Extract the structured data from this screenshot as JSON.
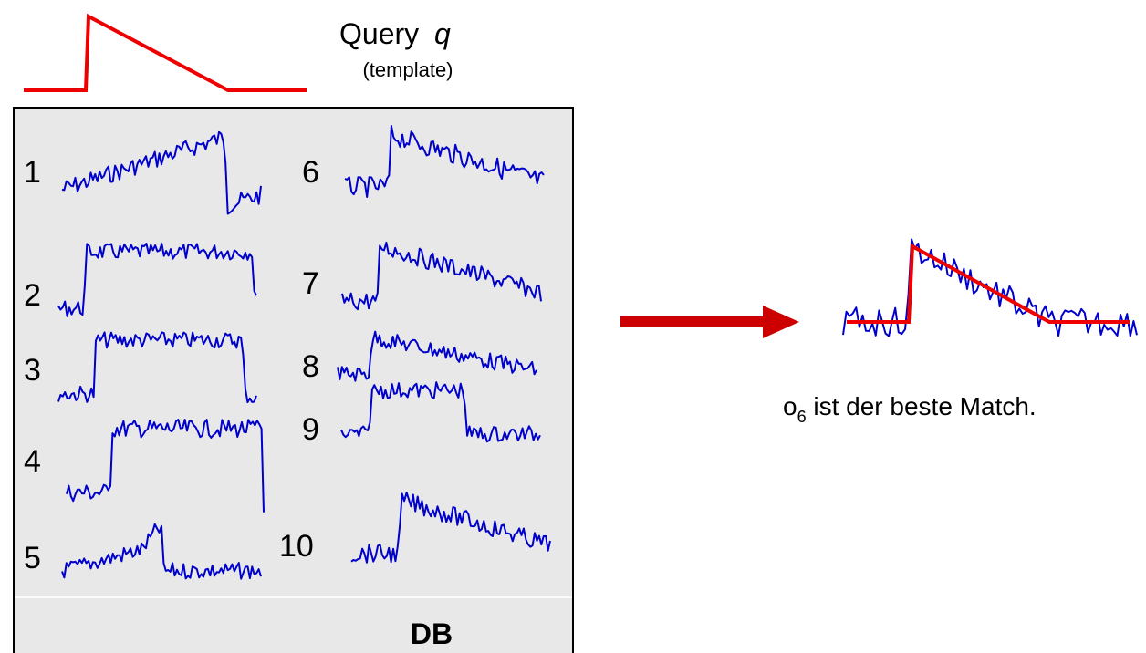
{
  "query": {
    "title": "Query",
    "variable": "q",
    "subtitle": "(template)",
    "color": "#ee0000"
  },
  "database": {
    "label": "DB",
    "background": "#e8e8e8",
    "series_color": "#0000cc",
    "series_labels": [
      "1",
      "2",
      "3",
      "4",
      "5",
      "6",
      "7",
      "8",
      "9",
      "10"
    ]
  },
  "result": {
    "object": "o",
    "subscript": "6",
    "text": " ist der beste Match.",
    "arrow_color": "#cc0000"
  }
}
